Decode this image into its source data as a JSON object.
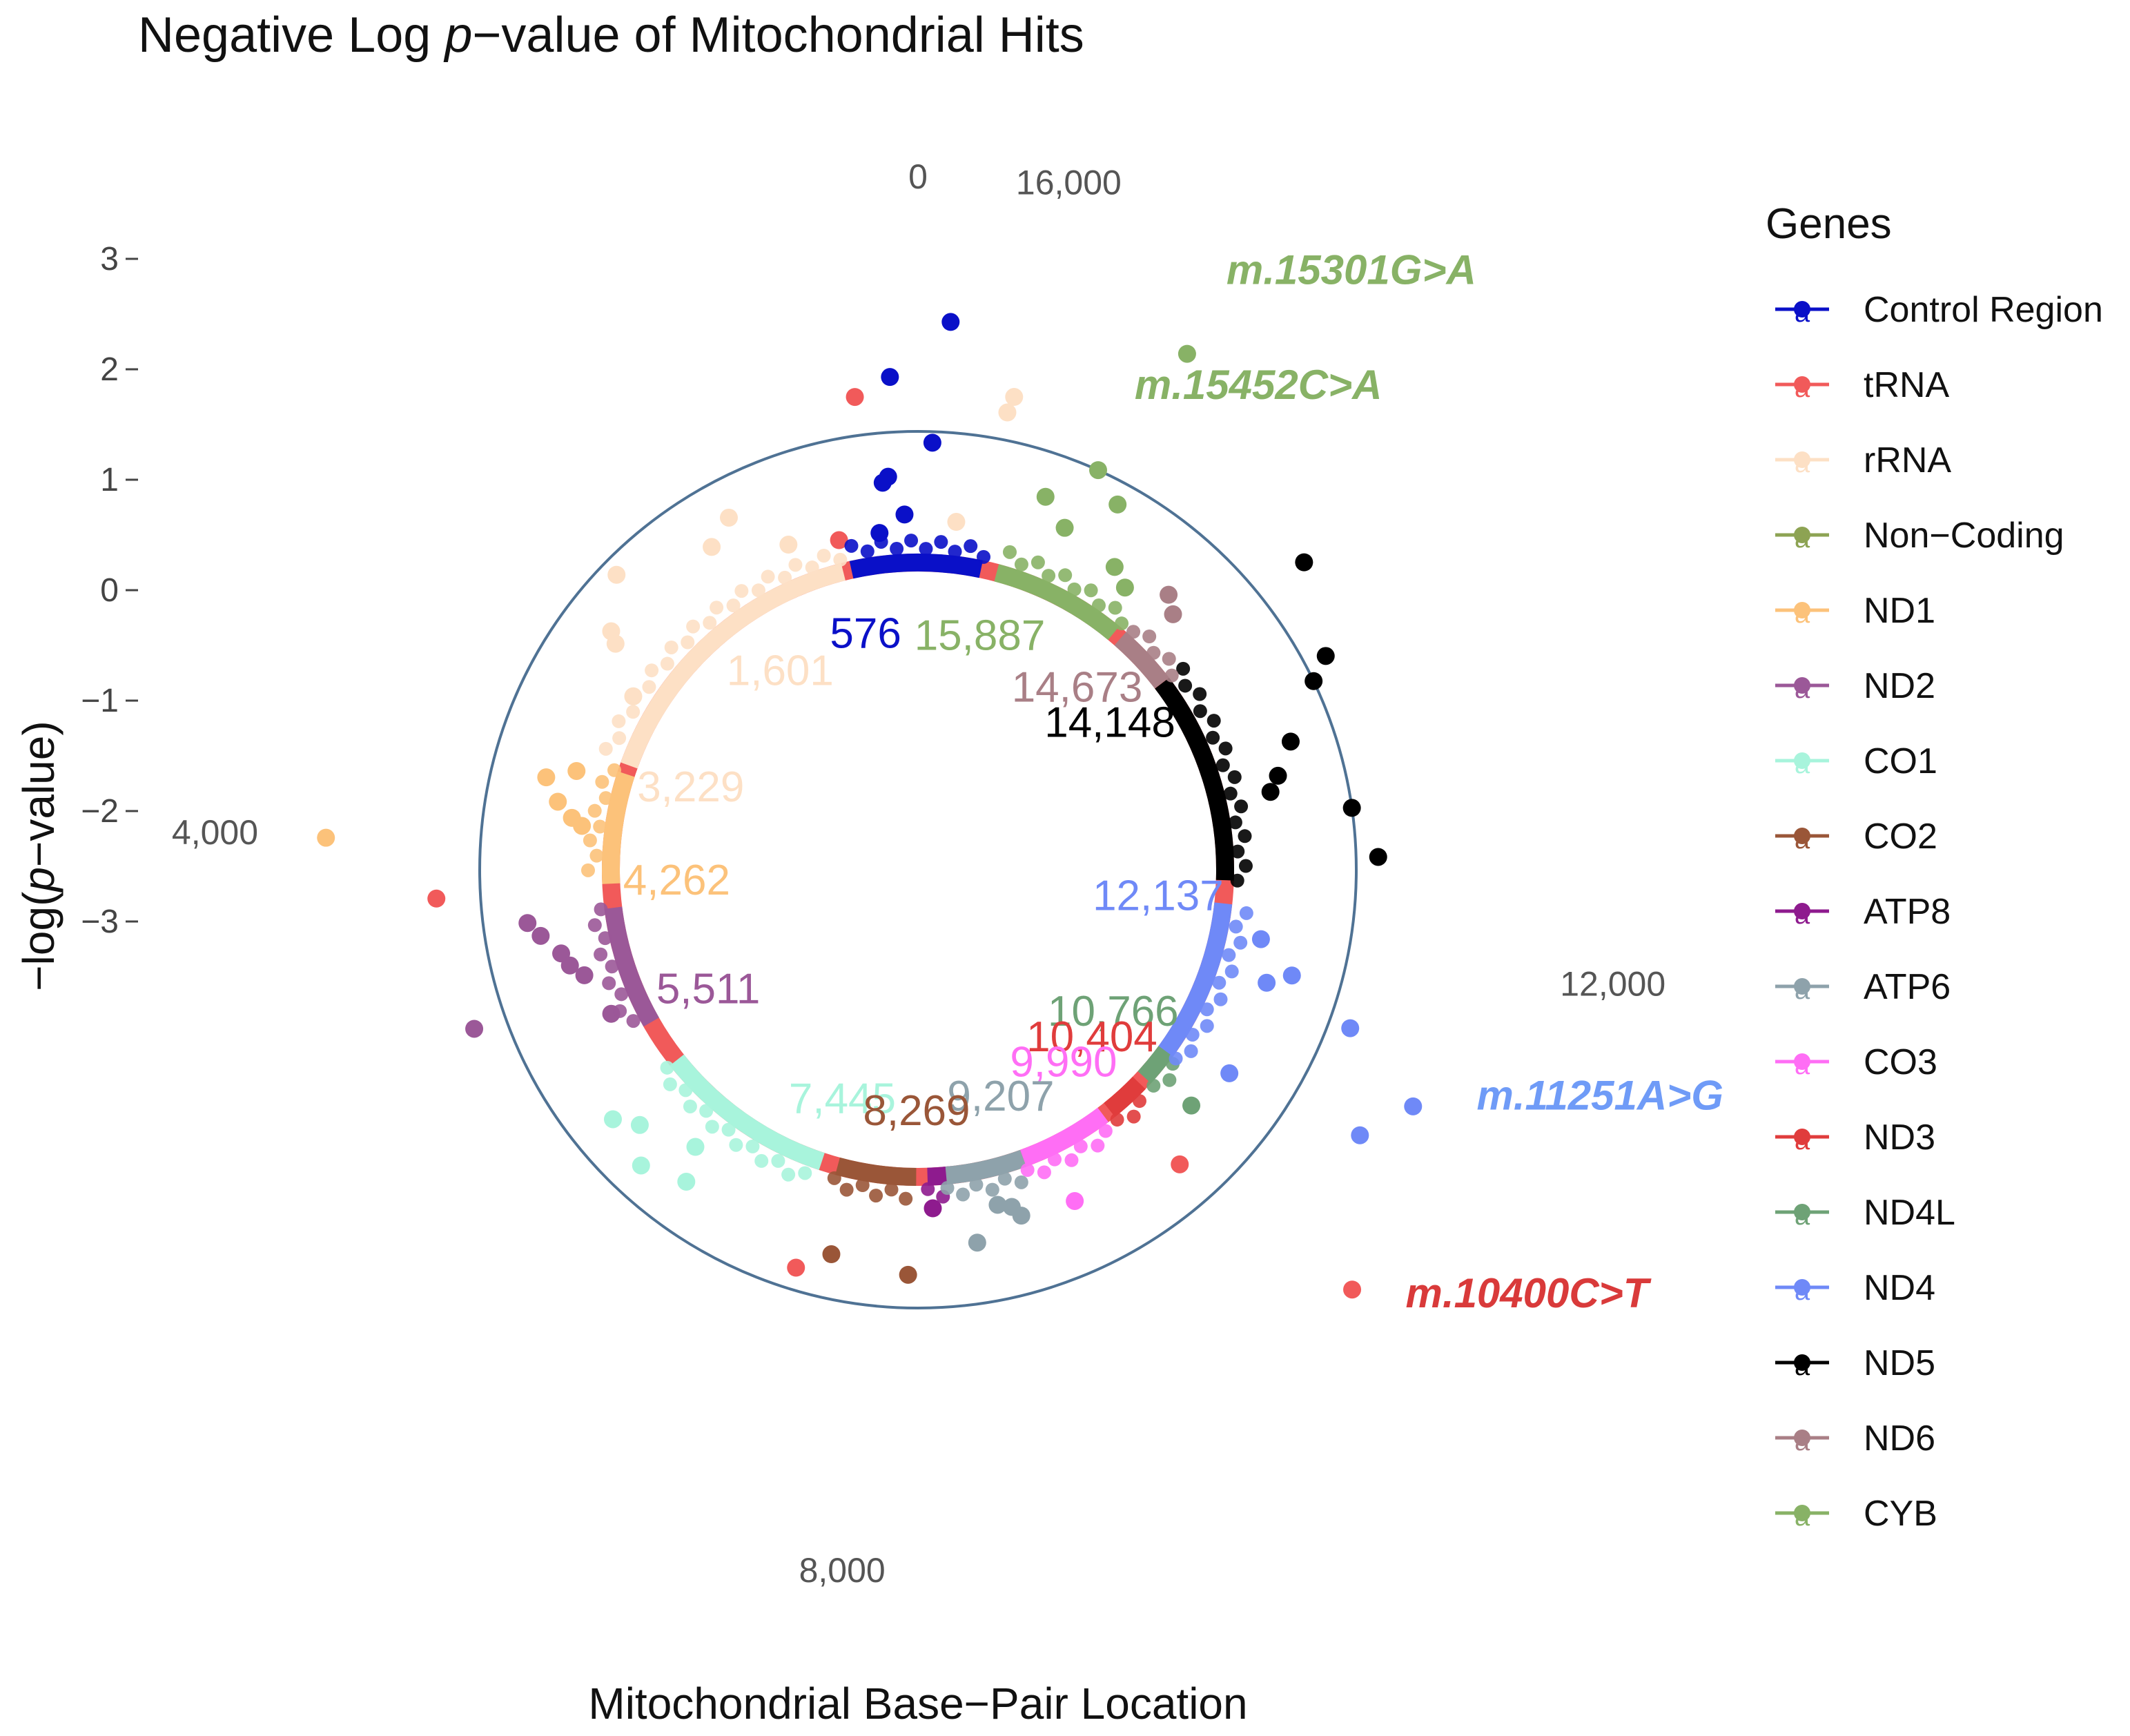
{
  "chart_data": {
    "type": "scatter",
    "subtype": "circular-manhattan",
    "title_parts": [
      "Negative Log ",
      "p",
      "−value of Mitochondrial Hits"
    ],
    "xlabel": "Mitochondrial Base−Pair Location",
    "ylabel_parts": [
      "−log(",
      "p",
      "−value)"
    ],
    "ylim": [
      -3,
      3
    ],
    "y_ticks": [
      {
        "value": 3,
        "label": "3"
      },
      {
        "value": 2,
        "label": "2"
      },
      {
        "value": 1,
        "label": "1"
      },
      {
        "value": 0,
        "label": "0"
      },
      {
        "value": -1,
        "label": "−1"
      },
      {
        "value": -2,
        "label": "−2"
      },
      {
        "value": -3,
        "label": "−3"
      }
    ],
    "circular_ticks": [
      {
        "label": "0",
        "value": 0
      },
      {
        "label": "16,000",
        "value": 16000
      },
      {
        "label": "12,000",
        "value": 12000
      },
      {
        "label": "8,000",
        "value": 8000
      },
      {
        "label": "4,000",
        "value": 4000
      }
    ],
    "legend_title": "Genes",
    "genes": [
      {
        "name": "Control Region",
        "color": "#0a10c8",
        "start": 16024,
        "end": 576
      },
      {
        "name": "tRNA",
        "color": "#f15a5a",
        "start": 0,
        "end": 0
      },
      {
        "name": "rRNA",
        "color": "#fde0c5",
        "start": 648,
        "end": 3229
      },
      {
        "name": "Non−Coding",
        "color": "#8da353",
        "start": 0,
        "end": 0
      },
      {
        "name": "ND1",
        "color": "#fcc27a",
        "start": 3307,
        "end": 4262
      },
      {
        "name": "ND2",
        "color": "#9b5898",
        "start": 4470,
        "end": 5511
      },
      {
        "name": "CO1",
        "color": "#a8f4dc",
        "start": 5904,
        "end": 7445
      },
      {
        "name": "CO2",
        "color": "#9a5638",
        "start": 7586,
        "end": 8269
      },
      {
        "name": "ATP8",
        "color": "#8e1b8e",
        "start": 8366,
        "end": 8572
      },
      {
        "name": "ATP6",
        "color": "#8ea2ab",
        "start": 8527,
        "end": 9207
      },
      {
        "name": "CO3",
        "color": "#ff6ef5",
        "start": 9207,
        "end": 9990
      },
      {
        "name": "ND3",
        "color": "#e03c3c",
        "start": 10059,
        "end": 10404
      },
      {
        "name": "ND4L",
        "color": "#6ea276",
        "start": 10470,
        "end": 10766
      },
      {
        "name": "ND4",
        "color": "#6f89f7",
        "start": 10760,
        "end": 12137
      },
      {
        "name": "ND5",
        "color": "#000000",
        "start": 12337,
        "end": 14148
      },
      {
        "name": "ND6",
        "color": "#a97f86",
        "start": 14149,
        "end": 14673
      },
      {
        "name": "CYB",
        "color": "#88b266",
        "start": 14747,
        "end": 15887
      }
    ],
    "position_labels": [
      {
        "text": "576",
        "gene": "Control Region"
      },
      {
        "text": "15,887",
        "gene": "CYB"
      },
      {
        "text": "1,601",
        "gene": "rRNA"
      },
      {
        "text": "14,673",
        "gene": "ND6"
      },
      {
        "text": "14,148",
        "gene": "ND5"
      },
      {
        "text": "3,229",
        "gene": "rRNA"
      },
      {
        "text": "4,262",
        "gene": "ND1"
      },
      {
        "text": "12,137",
        "gene": "ND4"
      },
      {
        "text": "5,511",
        "gene": "ND2"
      },
      {
        "text": "10,766",
        "gene": "ND4L"
      },
      {
        "text": "10,404",
        "gene": "ND3"
      },
      {
        "text": "9,990",
        "gene": "CO3"
      },
      {
        "text": "7,445",
        "gene": "CO1"
      },
      {
        "text": "9,207",
        "gene": "ATP6"
      },
      {
        "text": "8,269",
        "gene": "CO2"
      }
    ],
    "annotations": [
      {
        "text": "m.15301G>A",
        "gene": "CYB",
        "position": 15301,
        "value": 2.3
      },
      {
        "text": "m.15452C>A",
        "gene": "CYB",
        "position": 15452,
        "value": 1.0
      },
      {
        "text": "m.11251A>G",
        "gene": "ND4",
        "position": 11251,
        "value": 2.0
      },
      {
        "text": "m.10400C>T",
        "gene": "ND3",
        "position": 10400,
        "value": 2.5
      }
    ],
    "points": [
      {
        "gene": "Control Region",
        "pos": 16412,
        "value": 2.0
      },
      {
        "gene": "Control Region",
        "pos": 16480,
        "value": 0.9
      },
      {
        "gene": "Control Region",
        "pos": 150,
        "value": 1.5
      },
      {
        "gene": "Control Region",
        "pos": 200,
        "value": 0.6
      },
      {
        "gene": "Control Region",
        "pos": 240,
        "value": 0.55
      },
      {
        "gene": "Control Region",
        "pos": 100,
        "value": 0.25
      },
      {
        "gene": "Control Region",
        "pos": 300,
        "value": 0.1
      },
      {
        "gene": "tRNA",
        "pos": 350,
        "value": 1.35
      },
      {
        "gene": "tRNA",
        "pos": 620,
        "value": 0.1
      },
      {
        "gene": "rRNA",
        "pos": 16040,
        "value": 1.4
      },
      {
        "gene": "rRNA",
        "pos": 16060,
        "value": 1.25
      },
      {
        "gene": "rRNA",
        "pos": 16280,
        "value": 0.2
      },
      {
        "gene": "rRNA",
        "pos": 1000,
        "value": 0.2
      },
      {
        "gene": "rRNA",
        "pos": 1300,
        "value": 0.65
      },
      {
        "gene": "rRNA",
        "pos": 1500,
        "value": 0.5
      },
      {
        "gene": "rRNA",
        "pos": 2100,
        "value": 0.85
      },
      {
        "gene": "rRNA",
        "pos": 2400,
        "value": 0.55
      },
      {
        "gene": "rRNA",
        "pos": 2450,
        "value": 0.45
      },
      {
        "gene": "rRNA",
        "pos": 2700,
        "value": 0.05
      },
      {
        "gene": "ND1",
        "pos": 3400,
        "value": 0.25
      },
      {
        "gene": "ND1",
        "pos": 3500,
        "value": 0.5
      },
      {
        "gene": "ND1",
        "pos": 3650,
        "value": 0.35
      },
      {
        "gene": "ND1",
        "pos": 3750,
        "value": 0.2
      },
      {
        "gene": "ND1",
        "pos": 3800,
        "value": 0.1
      },
      {
        "gene": "ND1",
        "pos": 4000,
        "value": 2.4
      },
      {
        "gene": "tRNA",
        "pos": 4300,
        "value": 1.4
      },
      {
        "gene": "ND2",
        "pos": 4500,
        "value": 0.6
      },
      {
        "gene": "ND2",
        "pos": 4600,
        "value": 0.5
      },
      {
        "gene": "ND2",
        "pos": 4750,
        "value": 0.35
      },
      {
        "gene": "ND2",
        "pos": 4850,
        "value": 0.3
      },
      {
        "gene": "ND2",
        "pos": 4950,
        "value": 0.2
      },
      {
        "gene": "ND2",
        "pos": 5050,
        "value": 1.3
      },
      {
        "gene": "ND2",
        "pos": 5300,
        "value": 0.1
      },
      {
        "gene": "CO1",
        "pos": 5950,
        "value": 0.6
      },
      {
        "gene": "CO1",
        "pos": 6100,
        "value": 0.45
      },
      {
        "gene": "CO1",
        "pos": 6300,
        "value": 0.7
      },
      {
        "gene": "CO1",
        "pos": 6500,
        "value": 0.25
      },
      {
        "gene": "CO1",
        "pos": 6600,
        "value": 0.55
      },
      {
        "gene": "tRNA",
        "pos": 7500,
        "value": 0.8
      },
      {
        "gene": "CO2",
        "pos": 7700,
        "value": 0.6
      },
      {
        "gene": "CO2",
        "pos": 8220,
        "value": 0.7
      },
      {
        "gene": "ATP8",
        "pos": 8400,
        "value": 0.1
      },
      {
        "gene": "ATP6",
        "pos": 8700,
        "value": 0.45
      },
      {
        "gene": "ATP6",
        "pos": 8900,
        "value": 0.15
      },
      {
        "gene": "ATP6",
        "pos": 9000,
        "value": 0.2
      },
      {
        "gene": "ATP6",
        "pos": 9050,
        "value": 0.3
      },
      {
        "gene": "CO3",
        "pos": 9450,
        "value": 0.35
      },
      {
        "gene": "tRNA",
        "pos": 10400,
        "value": 2.5
      },
      {
        "gene": "tRNA",
        "pos": 10200,
        "value": 0.6
      },
      {
        "gene": "ND4L",
        "pos": 10550,
        "value": 0.3
      },
      {
        "gene": "ND4",
        "pos": 11251,
        "value": 2.0
      },
      {
        "gene": "ND4",
        "pos": 11000,
        "value": 1.7
      },
      {
        "gene": "ND4",
        "pos": 10900,
        "value": 0.4
      },
      {
        "gene": "ND4",
        "pos": 11500,
        "value": 1.2
      },
      {
        "gene": "ND4",
        "pos": 11700,
        "value": 0.55
      },
      {
        "gene": "ND4",
        "pos": 11900,
        "value": 0.2
      },
      {
        "gene": "ND4",
        "pos": 11600,
        "value": 0.35
      },
      {
        "gene": "ND5",
        "pos": 12500,
        "value": 1.2
      },
      {
        "gene": "ND5",
        "pos": 12800,
        "value": 1.0
      },
      {
        "gene": "ND5",
        "pos": 13000,
        "value": 0.3
      },
      {
        "gene": "ND5",
        "pos": 13100,
        "value": 0.4
      },
      {
        "gene": "ND5",
        "pos": 13300,
        "value": 0.6
      },
      {
        "gene": "ND5",
        "pos": 13600,
        "value": 1.0
      },
      {
        "gene": "ND5",
        "pos": 13700,
        "value": 1.2
      },
      {
        "gene": "ND5",
        "pos": 14200,
        "value": 1.5
      },
      {
        "gene": "ND6",
        "pos": 14500,
        "value": 0.3
      },
      {
        "gene": "ND6",
        "pos": 14620,
        "value": 0.4
      },
      {
        "gene": "CYB",
        "pos": 14900,
        "value": 0.2
      },
      {
        "gene": "CYB",
        "pos": 15050,
        "value": 0.3
      },
      {
        "gene": "CYB",
        "pos": 15250,
        "value": 0.8
      },
      {
        "gene": "CYB",
        "pos": 15301,
        "value": 2.3
      },
      {
        "gene": "CYB",
        "pos": 15452,
        "value": 1.0
      },
      {
        "gene": "CYB",
        "pos": 15500,
        "value": 0.4
      },
      {
        "gene": "CYB",
        "pos": 15700,
        "value": 0.6
      }
    ]
  }
}
